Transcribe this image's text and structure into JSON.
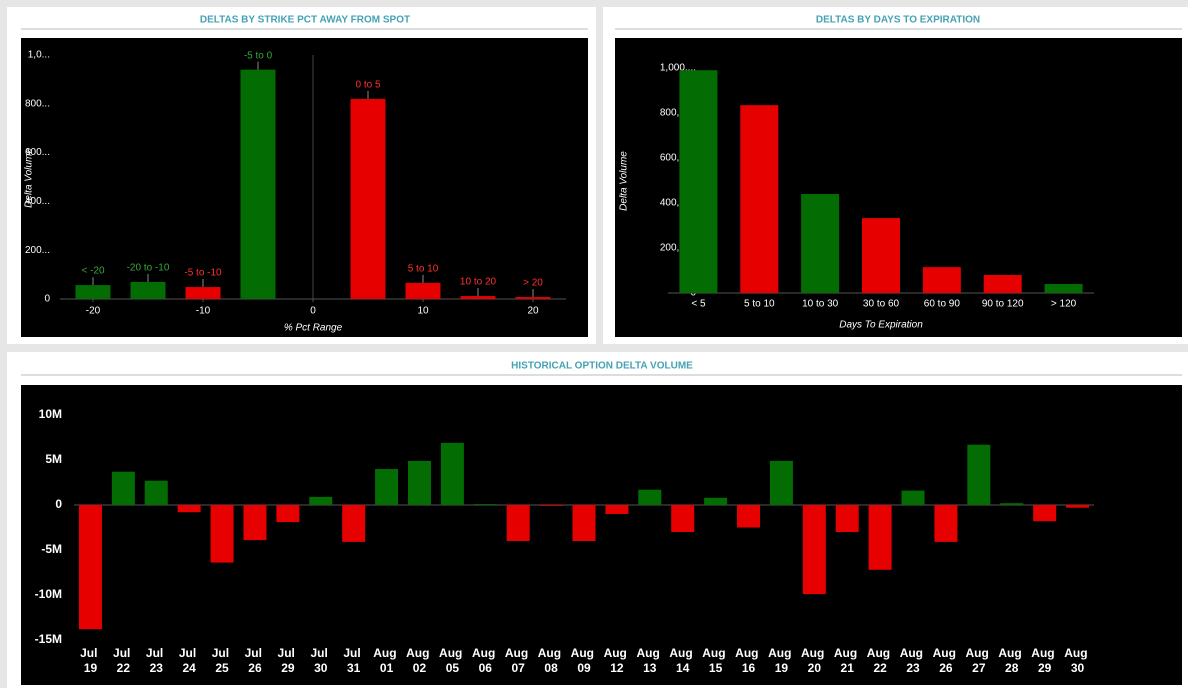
{
  "chart_data": [
    {
      "type": "bar",
      "title": "DELTAS BY STRIKE PCT AWAY FROM SPOT",
      "x": [
        -20,
        -15,
        -10,
        -5,
        5,
        10,
        15,
        20
      ],
      "labels": [
        "< -20",
        "-20 to -10",
        "-5 to -10",
        "-5 to 0",
        "0 to 5",
        "5 to 10",
        "10 to 20",
        "> 20"
      ],
      "values": [
        57000,
        70000,
        49000,
        940000,
        820000,
        66000,
        12000,
        8000
      ],
      "colors": [
        "#036d03",
        "#036d03",
        "#e60000",
        "#036d03",
        "#e60000",
        "#e60000",
        "#e60000",
        "#e60000"
      ],
      "xlim": [
        -23,
        23
      ],
      "xticks": [
        -20,
        -10,
        0,
        10,
        20
      ],
      "ylim": [
        0,
        1000000
      ],
      "yticks": [
        0,
        {
          "value": 200000,
          "label": "200..."
        },
        {
          "value": 400000,
          "label": "400..."
        },
        {
          "value": 600000,
          "label": "600..."
        },
        {
          "value": 800000,
          "label": "800..."
        },
        {
          "value": 1000000,
          "label": "1,0..."
        }
      ],
      "xlabel": "% Pct Range",
      "ylabel": "Delta Volume"
    },
    {
      "type": "bar",
      "title": "DELTAS BY DAYS TO EXPIRATION",
      "categories": [
        "< 5",
        "5 to 10",
        "10 to 30",
        "30 to 60",
        "60 to 90",
        "90 to 120",
        "> 120"
      ],
      "values": [
        990000,
        835000,
        440000,
        333000,
        115000,
        80000,
        40000
      ],
      "colors": [
        "#036d03",
        "#e60000",
        "#036d03",
        "#e60000",
        "#e60000",
        "#e60000",
        "#036d03"
      ],
      "ylim": [
        0,
        1000000
      ],
      "yticks": [
        0,
        {
          "value": 200000,
          "label": "200,000"
        },
        {
          "value": 400000,
          "label": "400,000"
        },
        {
          "value": 600000,
          "label": "600,000"
        },
        {
          "value": 800000,
          "label": "800,000"
        },
        {
          "value": 1000000,
          "label": "1,000,..."
        }
      ],
      "xlabel": "Days To Expiration",
      "ylabel": "Delta Volume"
    },
    {
      "type": "bar",
      "title": "HISTORICAL OPTION DELTA VOLUME",
      "categories": [
        "Jul 19",
        "Jul 22",
        "Jul 23",
        "Jul 24",
        "Jul 25",
        "Jul 26",
        "Jul 29",
        "Jul 30",
        "Jul 31",
        "Aug 01",
        "Aug 02",
        "Aug 05",
        "Aug 06",
        "Aug 07",
        "Aug 08",
        "Aug 09",
        "Aug 12",
        "Aug 13",
        "Aug 14",
        "Aug 15",
        "Aug 16",
        "Aug 19",
        "Aug 20",
        "Aug 21",
        "Aug 22",
        "Aug 23",
        "Aug 26",
        "Aug 27",
        "Aug 28",
        "Aug 29",
        "Aug 30"
      ],
      "values": [
        -13800000,
        3700000,
        2700000,
        -800000,
        -6400000,
        -3900000,
        -1900000,
        900000,
        -4100000,
        4000000,
        4900000,
        6900000,
        100000,
        -4000000,
        -100000,
        -4000000,
        -1000000,
        1700000,
        -3000000,
        800000,
        -2500000,
        4900000,
        -9900000,
        -3000000,
        -7200000,
        1600000,
        -4100000,
        6700000,
        200000,
        -1800000,
        -300000
      ],
      "positive_color": "#036d03",
      "negative_color": "#e60000",
      "ylim": [
        -15000000,
        10000000
      ],
      "yticks": [
        {
          "value": -15000000,
          "label": "-15M"
        },
        {
          "value": -10000000,
          "label": "-10M"
        },
        {
          "value": -5000000,
          "label": "-5M"
        },
        0,
        {
          "value": 5000000,
          "label": "5M"
        },
        {
          "value": 10000000,
          "label": "10M"
        }
      ]
    }
  ]
}
